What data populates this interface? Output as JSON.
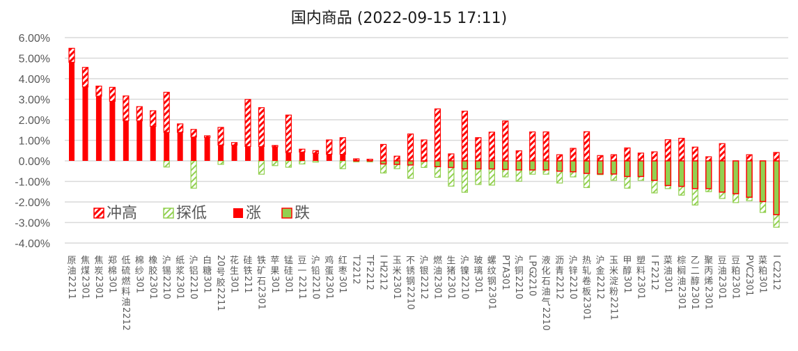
{
  "chart_data": {
    "type": "bar",
    "title": "国内商品 (2022-09-15 17:11)",
    "xlabel": "",
    "ylabel": "",
    "ylim": [
      -0.04,
      0.06
    ],
    "yticks": [
      "6.00%",
      "5.00%",
      "4.00%",
      "3.00%",
      "2.00%",
      "1.00%",
      "0.00%",
      "-1.00%",
      "-2.00%",
      "-3.00%",
      "-4.00%"
    ],
    "grid": true,
    "legend": {
      "position": "inside-left-bottom",
      "entries": [
        {
          "name": "冲高",
          "color": "#ff0000",
          "style": "hatched-red"
        },
        {
          "name": "探低",
          "color": "#92d050",
          "style": "hatched-green"
        },
        {
          "name": "涨",
          "color": "#ff0000",
          "style": "solid-red"
        },
        {
          "name": "跌",
          "color": "#92d050",
          "style": "solid-green-red-border"
        }
      ]
    },
    "categories": [
      "原油2211",
      "焦煤2301",
      "焦炭2301",
      "郑棉301",
      "低硫燃料油2212",
      "棉纱301",
      "橡胶2301",
      "沪锡2210",
      "纸浆2301",
      "沪铝2210",
      "白糖301",
      "20号胶2211",
      "花生301",
      "硅铁211",
      "铁矿石2301",
      "苹果301",
      "锰硅301",
      "豆一2211",
      "沪铅2210",
      "鸡蛋2301",
      "红枣301",
      "T2212",
      "TF2212",
      "IH2212",
      "玉米2301",
      "不锈钢2210",
      "沪银2212",
      "燃油2301",
      "生猪2301",
      "沪镍2210",
      "玻璃301",
      "螺纹钢2301",
      "PTA301",
      "沪铜2210",
      "LPG2210",
      "液化石油气2210",
      "沥青2212",
      "沪锌2210",
      "热轧卷板2301",
      "沪金2212",
      "玉米淀粉2211",
      "甲醇301",
      "塑料2301",
      "IF2212",
      "菜油301",
      "棕榈油2301",
      "乙二醇2301",
      "聚丙烯2301",
      "豆油2301",
      "豆粕2301",
      "PVC2301",
      "菜粕301",
      "IC2212"
    ],
    "series": [
      {
        "name": "涨跌(close)",
        "unit": "%",
        "values": [
          4.8,
          3.6,
          3.15,
          2.9,
          1.95,
          1.95,
          1.68,
          1.39,
          1.39,
          1.16,
          1.14,
          0.77,
          0.77,
          0.7,
          0.7,
          0.68,
          0.4,
          0.43,
          0.36,
          0.32,
          0.32,
          0.02,
          0.02,
          -0.15,
          -0.17,
          -0.2,
          -0.02,
          -0.28,
          -0.32,
          -0.39,
          -0.39,
          -0.39,
          -0.42,
          -0.44,
          -0.44,
          -0.44,
          -0.5,
          -0.53,
          -0.61,
          -0.64,
          -0.64,
          -0.76,
          -0.76,
          -0.95,
          -1.2,
          -1.24,
          -1.35,
          -1.35,
          -1.52,
          -1.6,
          -1.77,
          -1.98,
          -2.62
        ]
      },
      {
        "name": "冲高(high)",
        "unit": "%",
        "values": [
          5.48,
          4.55,
          3.64,
          3.58,
          3.16,
          2.64,
          2.44,
          3.34,
          1.8,
          1.53,
          1.22,
          1.63,
          0.89,
          2.99,
          2.59,
          0.75,
          2.23,
          0.57,
          0.5,
          1.02,
          1.13,
          0.1,
          0.08,
          0.8,
          0.23,
          1.31,
          1.02,
          2.53,
          0.34,
          2.42,
          1.13,
          1.4,
          1.94,
          0.49,
          1.41,
          1.41,
          0.3,
          0.61,
          1.42,
          0.26,
          0.3,
          0.63,
          0.38,
          0.44,
          1.03,
          1.1,
          0.67,
          0.2,
          0.84,
          0.0,
          0.3,
          0.0,
          0.41
        ]
      },
      {
        "name": "探低(low)",
        "unit": "%",
        "values": [
          0.0,
          0.0,
          0.0,
          0.0,
          0.0,
          0.0,
          0.0,
          -0.3,
          0.0,
          -1.33,
          0.0,
          -0.17,
          0.0,
          0.0,
          -0.65,
          -0.23,
          -0.31,
          -0.15,
          -0.06,
          0.0,
          -0.38,
          -0.05,
          -0.05,
          -0.59,
          -0.38,
          -0.85,
          -0.32,
          -0.8,
          -1.23,
          -1.53,
          -1.15,
          -1.18,
          -0.78,
          -0.99,
          -0.65,
          -0.65,
          -1.08,
          -0.78,
          -1.3,
          -0.67,
          -0.95,
          -1.33,
          -0.95,
          -1.56,
          -1.35,
          -1.67,
          -2.15,
          -1.5,
          -1.83,
          -2.03,
          -1.94,
          -2.51,
          -3.23
        ]
      }
    ]
  },
  "colors": {
    "up": "#ff0000",
    "down": "#92d050",
    "grid": "#d9d9d9",
    "axis_text": "#595959"
  }
}
